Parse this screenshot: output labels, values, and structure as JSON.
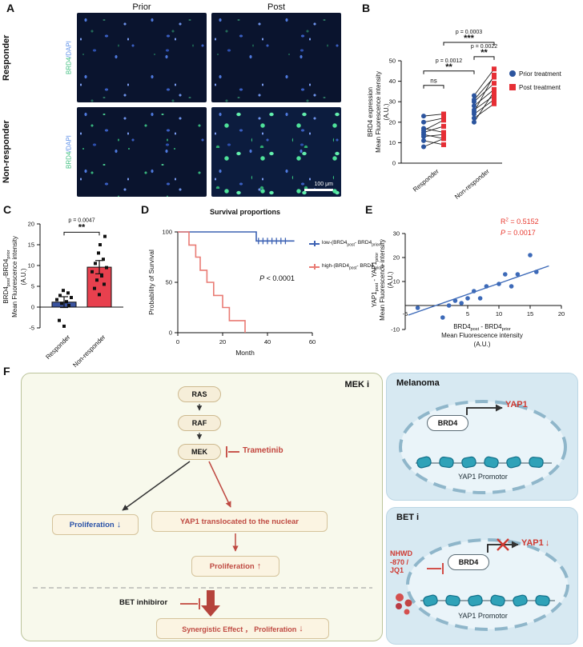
{
  "panels": {
    "a": "A",
    "b": "B",
    "c": "C",
    "d": "D",
    "e": "E",
    "f": "F"
  },
  "panelA": {
    "col_headers": [
      "Prior",
      "Post"
    ],
    "row_labels": [
      "Responder",
      "Non-responder"
    ],
    "stain": {
      "brd4": "BRD4",
      "dapi": "/DAPI"
    },
    "scale_bar": "100 μm",
    "colors": {
      "brd4_green": "#3fbf7f",
      "dapi_blue": "#5b8fe8"
    }
  },
  "chart_data": [
    {
      "id": "B",
      "type": "paired-scatter",
      "ylabel_lines": [
        "BRD4 expression",
        "Mean Fluorescence intensity",
        "(A.U.)"
      ],
      "ylim": [
        0,
        50
      ],
      "yticks": [
        0,
        10,
        20,
        30,
        40,
        50
      ],
      "groups": [
        "Responder",
        "Non-responder"
      ],
      "series": [
        {
          "name": "Prior treatment",
          "marker": "circle",
          "color": "#2b549e"
        },
        {
          "name": "Post treatment",
          "marker": "square",
          "color": "#e62e35"
        }
      ],
      "pairs": [
        [
          [
            23,
            24
          ],
          [
            20,
            22
          ],
          [
            17,
            15
          ],
          [
            15,
            18
          ],
          [
            14,
            12
          ],
          [
            13,
            14
          ],
          [
            11,
            9
          ],
          [
            8,
            12
          ],
          [
            16,
            21
          ]
        ],
        [
          [
            33,
            46
          ],
          [
            31,
            42
          ],
          [
            30,
            39
          ],
          [
            28,
            36
          ],
          [
            26,
            33
          ],
          [
            24,
            31
          ],
          [
            22,
            29
          ],
          [
            20,
            35
          ],
          [
            25,
            43
          ]
        ]
      ],
      "significance": [
        {
          "text": "ns",
          "stars": "",
          "x1": 0,
          "x2": 1,
          "y": 38
        },
        {
          "text": "p = 0.0012",
          "stars": "**",
          "x1": 0,
          "x2": 2,
          "y": 45
        },
        {
          "text": "p = 0.0022",
          "stars": "**",
          "x1": 2,
          "x2": 3,
          "y": 52
        },
        {
          "text": "p = 0.0003",
          "stars": "***",
          "x1": 1,
          "x2": 3,
          "y": 59
        }
      ]
    },
    {
      "id": "C",
      "type": "bar",
      "categories": [
        "Responder",
        "Non-responder"
      ],
      "values": [
        1.2,
        9.6
      ],
      "errors": [
        1.3,
        1.6
      ],
      "bar_colors": [
        "#3b549f",
        "#e8404e"
      ],
      "points": [
        [
          -4.6,
          -3.2,
          0.4,
          0.9,
          1.3,
          1.8,
          2.3,
          2.8,
          3.4,
          4.0
        ],
        [
          3,
          4.5,
          5.5,
          6.5,
          7.5,
          8.5,
          9.5,
          10.5,
          11.5,
          13,
          15,
          17
        ]
      ],
      "ylim": [
        -5,
        20
      ],
      "yticks": [
        -5,
        0,
        5,
        10,
        15,
        20
      ],
      "ylabel_line1": [
        [
          "BRD4",
          0
        ],
        [
          "post",
          1
        ],
        [
          "-BRD4",
          0
        ],
        [
          "prior",
          1
        ]
      ],
      "ylabel_lines_rest": [
        "Mean Fluorescence intensity",
        "(A.U.)"
      ],
      "significance": [
        {
          "text": "p = 0.0047",
          "stars": "**",
          "x1": 0,
          "x2": 1,
          "y": 18
        }
      ]
    },
    {
      "id": "D",
      "type": "km",
      "title": "Survival proportions",
      "xlabel": "Month",
      "ylabel": "Probability of Survival",
      "xlim": [
        0,
        60
      ],
      "xticks": [
        0,
        20,
        40,
        60
      ],
      "ylim": [
        0,
        100
      ],
      "yticks": [
        0,
        50,
        100
      ],
      "p_italic": "P",
      "p_rest": "< 0.0001",
      "series": [
        {
          "color": "#3d62b4",
          "name_parts": {
            "pre": "low-(BRD4",
            "sub1": "post",
            "mid": "- BRD4",
            "sub2": "prior",
            "end": ")"
          },
          "steps": [
            [
              0,
              100
            ],
            [
              35,
              100
            ],
            [
              35,
              91
            ],
            [
              52,
              91
            ]
          ],
          "censors": [
            [
              36,
              91
            ],
            [
              38,
              91
            ],
            [
              40,
              91
            ],
            [
              42,
              91
            ],
            [
              44,
              91
            ],
            [
              46,
              91
            ],
            [
              48,
              91
            ]
          ]
        },
        {
          "color": "#e97b74",
          "name_parts": {
            "pre": "high-(BRD4",
            "sub1": "post",
            "mid": "- BRD4",
            "sub2": "prior",
            "end": ")"
          },
          "steps": [
            [
              0,
              100
            ],
            [
              5,
              100
            ],
            [
              5,
              87
            ],
            [
              8,
              87
            ],
            [
              8,
              75
            ],
            [
              10,
              75
            ],
            [
              10,
              62
            ],
            [
              13,
              62
            ],
            [
              13,
              50
            ],
            [
              16,
              50
            ],
            [
              16,
              37
            ],
            [
              20,
              37
            ],
            [
              20,
              25
            ],
            [
              23,
              25
            ],
            [
              23,
              12
            ],
            [
              30,
              12
            ],
            [
              30,
              0
            ]
          ],
          "censors": []
        }
      ]
    },
    {
      "id": "E",
      "type": "scatter",
      "color": "#3d6ab8",
      "accent": "#e8392f",
      "xlim": [
        -5,
        20
      ],
      "xticks": [
        -5,
        5,
        10,
        15,
        20
      ],
      "ylim": [
        -10,
        30
      ],
      "yticks": [
        -10,
        10,
        20,
        30
      ],
      "points": [
        [
          -3,
          -1
        ],
        [
          1,
          -5
        ],
        [
          2,
          0
        ],
        [
          3,
          2
        ],
        [
          4,
          1
        ],
        [
          5,
          3
        ],
        [
          6,
          6
        ],
        [
          7,
          3
        ],
        [
          8,
          8
        ],
        [
          10,
          9
        ],
        [
          11,
          13
        ],
        [
          12,
          8
        ],
        [
          13,
          13
        ],
        [
          15,
          21
        ],
        [
          16,
          14
        ]
      ],
      "fit": [
        [
          -4.5,
          -4
        ],
        [
          18,
          16.5
        ]
      ],
      "r2_label": "R",
      "r2_sup": "2",
      "r2_rest": " = 0.5152",
      "p_italic": "P",
      "p_rest": " = 0.0017",
      "ylabel_line1": [
        [
          "YAP1",
          0
        ],
        [
          "post",
          1
        ],
        [
          " - YAP1",
          0
        ],
        [
          "prior",
          1
        ]
      ],
      "xlabel_line1": [
        [
          "BRD4",
          0
        ],
        [
          "post",
          1
        ],
        [
          " - BRD4",
          0
        ],
        [
          "prior",
          1
        ]
      ],
      "label_lines_rest": [
        "Mean Fluorescence intensity",
        "(A.U.)"
      ]
    }
  ],
  "panelF": {
    "mek_i": "MEK i",
    "nodes": [
      "RAS",
      "RAF",
      "MEK"
    ],
    "trametinib": "Trametinib",
    "proliferation_down": {
      "text": "Proliferation",
      "arrow": "↓"
    },
    "yap_translocation": "YAP1 translocated to the nuclear",
    "proliferation_up": {
      "text": "Proliferation",
      "arrow": "↑"
    },
    "bet_inhibitor": "BET inhibiror",
    "synergy": {
      "text": "Synergistic Effect ， Proliferation",
      "arrow": "↓"
    },
    "melanoma": {
      "title": "Melanoma",
      "brd4": "BRD4",
      "yap1": "YAP1",
      "promotor": "YAP1 Promotor"
    },
    "bet": {
      "title": "BET i",
      "drug_lines": [
        "NHWD",
        "-870 /",
        "JQ1"
      ],
      "brd4": "BRD4",
      "yap1": "YAP1",
      "arrow": "↓",
      "promotor": "YAP1 Promotor"
    }
  }
}
